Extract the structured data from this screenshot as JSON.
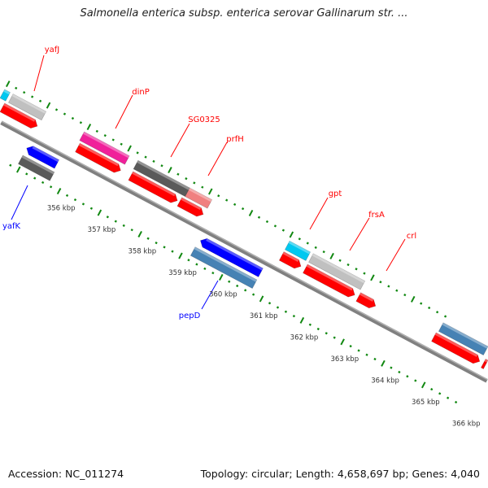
{
  "title": "Salmonella enterica subsp. enterica serovar Gallinarum str. ...",
  "footer": {
    "accession": "Accession: NC_011274",
    "summary": "Topology: circular; Length: 4,658,697 bp; Genes: 4,040"
  },
  "colors": {
    "plus_label": "#ff0000",
    "minus_label": "#0000ff",
    "tick": "#118811",
    "backbone": "#808080",
    "cds_plus": "#ff0000",
    "cds_minus": "#0000ff"
  },
  "tick_labels": [
    "356 kbp",
    "357 kbp",
    "358 kbp",
    "359 kbp",
    "360 kbp",
    "361 kbp",
    "362 kbp",
    "363 kbp",
    "364 kbp",
    "365 kbp",
    "366 kbp"
  ],
  "gene_labels": [
    {
      "name": "yafJ",
      "strand": "+"
    },
    {
      "name": "dinP",
      "strand": "+"
    },
    {
      "name": "SG0325",
      "strand": "+"
    },
    {
      "name": "prfH",
      "strand": "+"
    },
    {
      "name": "gpt",
      "strand": "+"
    },
    {
      "name": "frsA",
      "strand": "+"
    },
    {
      "name": "crl",
      "strand": "+"
    },
    {
      "name": "yafK",
      "strand": "-"
    },
    {
      "name": "pepD",
      "strand": "-"
    }
  ],
  "feature_colors": {
    "cyan": "#00c8f0",
    "light_gray": "#c0c0c0",
    "magenta": "#f0209a",
    "dark_gray": "#5a5a5a",
    "salmon": "#f08080",
    "steel_blue": "#4682b4"
  }
}
